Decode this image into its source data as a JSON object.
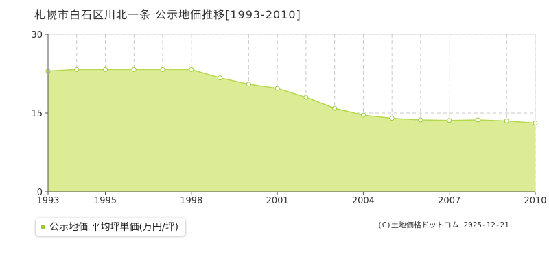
{
  "title": "札幌市白石区川北一条 公示地価推移[1993-2010]",
  "legend": {
    "label": "公示地価 平均坪単価(万円/坪)"
  },
  "copyright": "(C)土地価格ドットコム 2025-12-21",
  "colors": {
    "fill": "#dcec94",
    "line": "#b5d84a",
    "marker": "#99cc33",
    "grid": "#c8c8c8"
  },
  "chart_data": {
    "type": "area",
    "title": "札幌市白石区川北一条 公示地価推移[1993-2010]",
    "xlabel": "",
    "ylabel": "",
    "x": [
      1993,
      1994,
      1995,
      1996,
      1997,
      1998,
      1999,
      2000,
      2001,
      2002,
      2003,
      2004,
      2005,
      2006,
      2007,
      2008,
      2009,
      2010
    ],
    "series": [
      {
        "name": "公示地価 平均坪単価(万円/坪)",
        "values": [
          23.0,
          23.3,
          23.3,
          23.3,
          23.3,
          23.3,
          21.7,
          20.5,
          19.7,
          18.0,
          15.9,
          14.6,
          14.0,
          13.7,
          13.6,
          13.7,
          13.5,
          13.1
        ]
      }
    ],
    "xticks": [
      "1993",
      "1995",
      "1998",
      "2001",
      "2004",
      "2007",
      "2010"
    ],
    "yticks": [
      "0",
      "15",
      "30"
    ],
    "xlim": [
      1993,
      2010
    ],
    "ylim": [
      0,
      30
    ],
    "grid": true
  }
}
